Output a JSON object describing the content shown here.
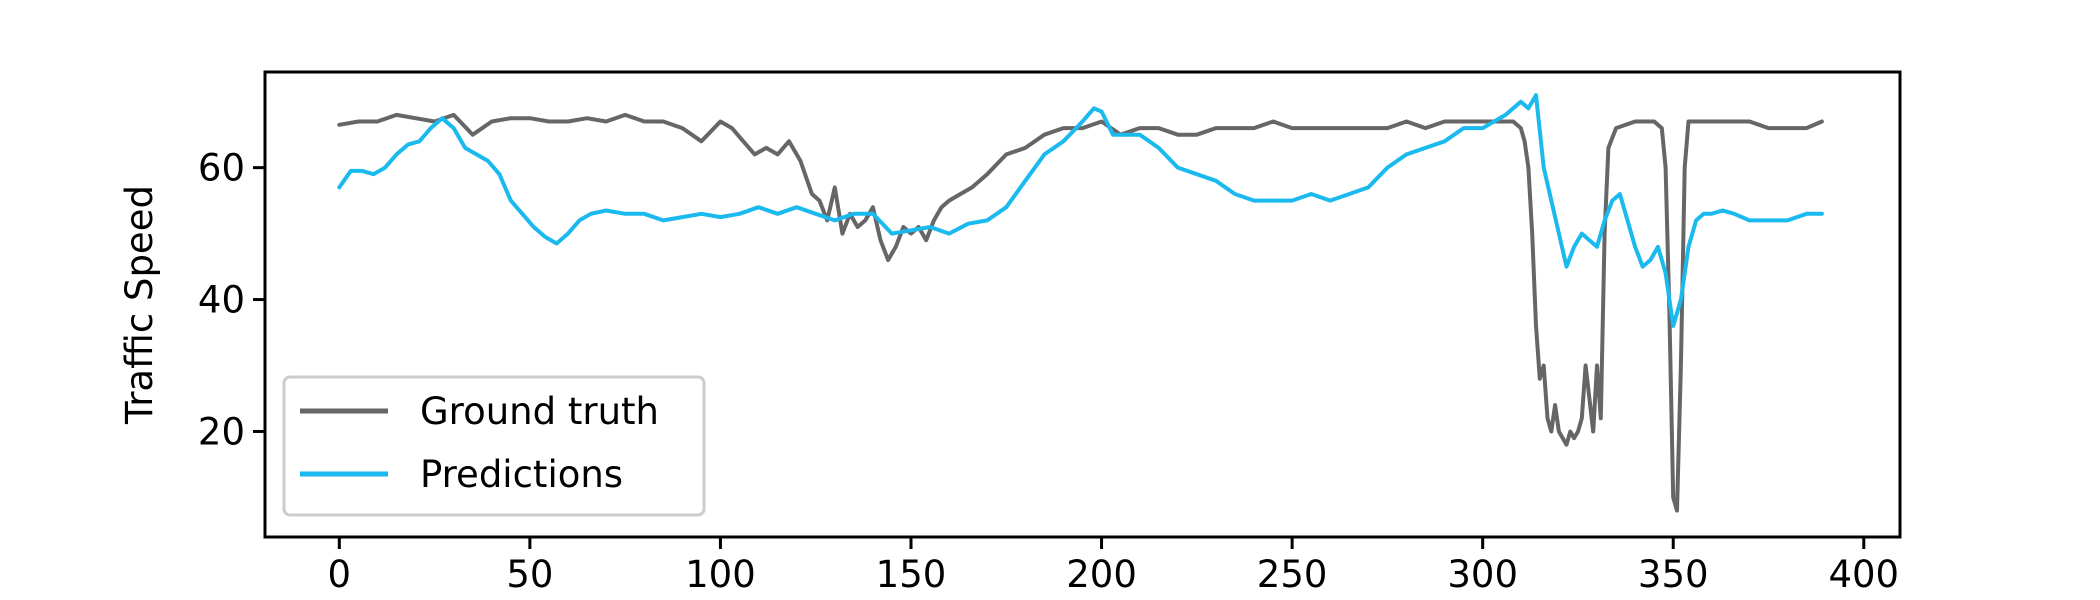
{
  "chart_data": {
    "type": "line",
    "title": "",
    "xlabel": "",
    "ylabel": "Traffic Speed",
    "xlim": [
      -19.5,
      409.5
    ],
    "ylim": [
      4.0,
      74.5
    ],
    "xticks": [
      0,
      50,
      100,
      150,
      200,
      250,
      300,
      350,
      400
    ],
    "yticks": [
      20,
      40,
      60
    ],
    "grid": false,
    "legend": "lower-left",
    "series": [
      {
        "name": "Ground truth",
        "color": "#666666",
        "x": [
          0,
          5,
          10,
          15,
          20,
          25,
          30,
          35,
          40,
          45,
          50,
          55,
          60,
          65,
          70,
          75,
          80,
          85,
          90,
          95,
          100,
          103,
          106,
          109,
          112,
          115,
          118,
          121,
          124,
          126,
          128,
          130,
          132,
          134,
          136,
          138,
          140,
          142,
          144,
          146,
          148,
          150,
          152,
          154,
          156,
          158,
          160,
          163,
          166,
          170,
          175,
          180,
          185,
          190,
          195,
          200,
          205,
          210,
          215,
          220,
          225,
          230,
          235,
          240,
          245,
          250,
          255,
          260,
          265,
          270,
          275,
          280,
          285,
          290,
          295,
          300,
          305,
          308,
          310,
          311,
          312,
          313,
          314,
          315,
          316,
          317,
          318,
          319,
          320,
          321,
          322,
          323,
          324,
          325,
          326,
          327,
          328,
          329,
          330,
          331,
          332,
          333,
          335,
          340,
          345,
          347,
          348,
          349,
          350,
          351,
          352,
          353,
          354,
          355,
          360,
          365,
          370,
          375,
          380,
          385,
          389
        ],
        "values": [
          66.5,
          67,
          67,
          68,
          67.5,
          67,
          68,
          65,
          67,
          67.5,
          67.5,
          67,
          67,
          67.5,
          67,
          68,
          67,
          67,
          66,
          64,
          67,
          66,
          64,
          62,
          63,
          62,
          64,
          61,
          56,
          55,
          52,
          57,
          50,
          53,
          51,
          52,
          54,
          49,
          46,
          48,
          51,
          50,
          51,
          49,
          52,
          54,
          55,
          56,
          57,
          59,
          62,
          63,
          65,
          66,
          66,
          67,
          65,
          66,
          66,
          65,
          65,
          66,
          66,
          66,
          67,
          66,
          66,
          66,
          66,
          66,
          66,
          67,
          66,
          67,
          67,
          67,
          67,
          67,
          66,
          64,
          60,
          50,
          36,
          28,
          30,
          22,
          20,
          24,
          20,
          19,
          18,
          20,
          19,
          20,
          22,
          30,
          25,
          20,
          30,
          22,
          50,
          63,
          66,
          67,
          67,
          66,
          60,
          38,
          10,
          8,
          30,
          60,
          67,
          67,
          67,
          67,
          67,
          66,
          66,
          66,
          67
        ]
      },
      {
        "name": "Predictions",
        "color": "#1ab9ee",
        "x": [
          0,
          3,
          6,
          9,
          12,
          15,
          18,
          21,
          24,
          27,
          30,
          33,
          36,
          39,
          42,
          45,
          48,
          51,
          54,
          57,
          60,
          63,
          66,
          70,
          75,
          80,
          85,
          90,
          95,
          100,
          105,
          110,
          115,
          120,
          125,
          130,
          135,
          140,
          145,
          150,
          155,
          160,
          165,
          170,
          175,
          180,
          185,
          190,
          195,
          198,
          200,
          203,
          206,
          210,
          215,
          220,
          225,
          230,
          235,
          240,
          245,
          250,
          255,
          260,
          265,
          270,
          275,
          280,
          285,
          290,
          295,
          300,
          303,
          306,
          308,
          310,
          312,
          314,
          316,
          318,
          320,
          322,
          324,
          326,
          328,
          330,
          332,
          334,
          336,
          338,
          340,
          342,
          344,
          346,
          348,
          350,
          352,
          354,
          356,
          358,
          360,
          363,
          366,
          370,
          375,
          380,
          385,
          389
        ],
        "values": [
          57,
          59.5,
          59.5,
          59,
          60,
          62,
          63.5,
          64,
          66,
          67.5,
          66,
          63,
          62,
          61,
          59,
          55,
          53,
          51,
          49.5,
          48.5,
          50,
          52,
          53,
          53.5,
          53,
          53,
          52,
          52.5,
          53,
          52.5,
          53,
          54,
          53,
          54,
          53,
          52,
          53,
          53,
          50,
          50.5,
          51,
          50,
          51.5,
          52,
          54,
          58,
          62,
          64,
          67,
          69,
          68.5,
          65,
          65,
          65,
          63,
          60,
          59,
          58,
          56,
          55,
          55,
          55,
          56,
          55,
          56,
          57,
          60,
          62,
          63,
          64,
          66,
          66,
          67,
          68,
          69,
          70,
          69,
          71,
          60,
          55,
          50,
          45,
          48,
          50,
          49,
          48,
          52,
          55,
          56,
          52,
          48,
          45,
          46,
          48,
          44,
          36,
          40,
          48,
          52,
          53,
          53,
          53.5,
          53,
          52,
          52,
          52,
          53,
          53
        ]
      }
    ]
  }
}
